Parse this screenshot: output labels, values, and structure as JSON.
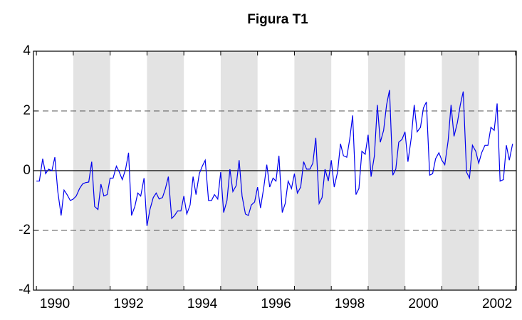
{
  "chart_data": {
    "type": "line",
    "title": "Figura T1",
    "x": [
      1990.0,
      1990.08,
      1990.17,
      1990.25,
      1990.33,
      1990.42,
      1990.5,
      1990.58,
      1990.67,
      1990.75,
      1990.83,
      1990.92,
      1991.0,
      1991.08,
      1991.17,
      1991.25,
      1991.33,
      1991.42,
      1991.5,
      1991.58,
      1991.67,
      1991.75,
      1991.83,
      1991.92,
      1992.0,
      1992.08,
      1992.17,
      1992.25,
      1992.33,
      1992.42,
      1992.5,
      1992.58,
      1992.67,
      1992.75,
      1992.83,
      1992.92,
      1993.0,
      1993.08,
      1993.17,
      1993.25,
      1993.33,
      1993.42,
      1993.5,
      1993.58,
      1993.67,
      1993.75,
      1993.83,
      1993.92,
      1994.0,
      1994.08,
      1994.17,
      1994.25,
      1994.33,
      1994.42,
      1994.5,
      1994.58,
      1994.67,
      1994.75,
      1994.83,
      1994.92,
      1995.0,
      1995.08,
      1995.17,
      1995.25,
      1995.33,
      1995.42,
      1995.5,
      1995.58,
      1995.67,
      1995.75,
      1995.83,
      1995.92,
      1996.0,
      1996.08,
      1996.17,
      1996.25,
      1996.33,
      1996.42,
      1996.5,
      1996.58,
      1996.67,
      1996.75,
      1996.83,
      1996.92,
      1997.0,
      1997.08,
      1997.17,
      1997.25,
      1997.33,
      1997.42,
      1997.5,
      1997.58,
      1997.67,
      1997.75,
      1997.83,
      1997.92,
      1998.0,
      1998.08,
      1998.17,
      1998.25,
      1998.33,
      1998.42,
      1998.5,
      1998.58,
      1998.67,
      1998.75,
      1998.83,
      1998.92,
      1999.0,
      1999.08,
      1999.17,
      1999.25,
      1999.33,
      1999.42,
      1999.5,
      1999.58,
      1999.67,
      1999.75,
      1999.83,
      1999.92,
      2000.0,
      2000.08,
      2000.17,
      2000.25,
      2000.33,
      2000.42,
      2000.5,
      2000.58,
      2000.67,
      2000.75,
      2000.83,
      2000.92,
      2001.0,
      2001.08,
      2001.17,
      2001.25,
      2001.33,
      2001.42,
      2001.5,
      2001.58,
      2001.67,
      2001.75,
      2001.83,
      2001.92,
      2002.0,
      2002.08,
      2002.17,
      2002.25,
      2002.33,
      2002.42,
      2002.5,
      2002.58,
      2002.67,
      2002.75,
      2002.83,
      2002.92
    ],
    "series": [
      {
        "color": "#0000ee",
        "values": [
          -0.35,
          -0.35,
          0.4,
          -0.1,
          0.05,
          0.0,
          0.45,
          -0.7,
          -1.5,
          -0.65,
          -0.8,
          -1.0,
          -0.95,
          -0.85,
          -0.6,
          -0.45,
          -0.4,
          -0.38,
          0.3,
          -1.2,
          -1.3,
          -0.45,
          -0.85,
          -0.8,
          -0.25,
          -0.25,
          0.15,
          -0.05,
          -0.3,
          0.05,
          0.6,
          -1.5,
          -1.2,
          -0.75,
          -0.85,
          -0.25,
          -1.85,
          -1.3,
          -0.9,
          -0.75,
          -0.95,
          -0.9,
          -0.6,
          -0.2,
          -1.6,
          -1.5,
          -1.35,
          -1.35,
          -0.85,
          -1.45,
          -1.15,
          -0.2,
          -0.8,
          -0.1,
          0.15,
          0.35,
          -1.0,
          -1.0,
          -0.8,
          -0.95,
          -0.05,
          -1.4,
          -1.0,
          0.05,
          -0.7,
          -0.5,
          0.35,
          -0.85,
          -1.45,
          -1.5,
          -1.15,
          -1.05,
          -0.55,
          -1.25,
          -0.55,
          0.2,
          -0.55,
          -0.25,
          -0.35,
          0.5,
          -1.4,
          -1.1,
          -0.35,
          -0.6,
          -0.1,
          -0.75,
          -0.55,
          0.3,
          0.05,
          0.05,
          0.25,
          1.1,
          -1.1,
          -0.9,
          0.05,
          -0.35,
          0.35,
          -0.55,
          -0.05,
          0.9,
          0.5,
          0.45,
          1.05,
          1.85,
          -0.8,
          -0.6,
          0.65,
          0.55,
          1.2,
          -0.2,
          0.5,
          2.2,
          0.95,
          1.35,
          2.2,
          2.7,
          -0.15,
          0.05,
          0.95,
          1.05,
          1.3,
          0.3,
          1.1,
          2.2,
          1.3,
          1.45,
          2.1,
          2.3,
          -0.15,
          -0.1,
          0.4,
          0.6,
          0.35,
          0.2,
          1.0,
          2.2,
          1.15,
          1.6,
          2.2,
          2.65,
          -0.05,
          -0.25,
          0.85,
          0.65,
          0.25,
          0.6,
          0.85,
          0.85,
          1.45,
          1.35,
          2.25,
          -0.35,
          -0.3,
          0.85,
          0.35,
          0.9
        ]
      }
    ],
    "xlim": [
      1989.92,
      2003.02
    ],
    "xticks": [
      {
        "value": 1990.5,
        "label": "1990"
      },
      {
        "value": 1992.5,
        "label": "1992"
      },
      {
        "value": 1994.5,
        "label": "1994"
      },
      {
        "value": 1996.5,
        "label": "1996"
      },
      {
        "value": 1998.5,
        "label": "1998"
      },
      {
        "value": 2000.5,
        "label": "2000"
      },
      {
        "value": 2002.5,
        "label": "2002"
      }
    ],
    "xminorticks": [
      1990,
      1991,
      1992,
      1993,
      1994,
      1995,
      1996,
      1997,
      1998,
      1999,
      2000,
      2001,
      2002,
      2003
    ],
    "shading": [
      [
        1991,
        1992
      ],
      [
        1993,
        1994
      ],
      [
        1995,
        1996
      ],
      [
        1997,
        1998
      ],
      [
        1999,
        2000
      ],
      [
        2001,
        2002
      ]
    ],
    "shading_color": "#e3e3e3",
    "ylim": [
      -4,
      4
    ],
    "yticks": [
      -4,
      -2,
      0,
      2,
      4
    ],
    "dashed_grid": [
      -2,
      2
    ],
    "zero_line": 0
  }
}
